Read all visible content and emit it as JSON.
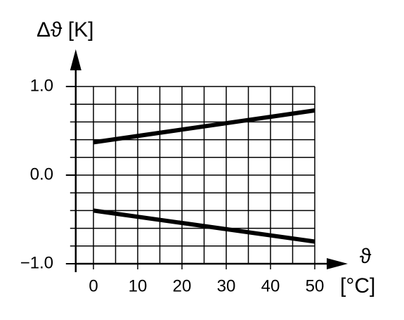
{
  "chart_data": {
    "type": "line",
    "y_label": "Δϑ [K]",
    "x_symbol": "ϑ",
    "x_unit": "[°C]",
    "x": [
      0,
      50
    ],
    "series": [
      {
        "color": "#000000",
        "values": [
          0.37,
          0.73
        ]
      },
      {
        "color": "#000000",
        "values": [
          -0.4,
          -0.75
        ]
      }
    ],
    "xlim": [
      -4,
      50
    ],
    "ylim": [
      -1,
      1
    ],
    "xticks": [
      0,
      10,
      20,
      30,
      40,
      50
    ],
    "yticks": [
      {
        "value": -1,
        "label": "−1.0"
      },
      {
        "value": 0,
        "label": "0.0"
      },
      {
        "value": 1,
        "label": "1.0"
      }
    ],
    "xgrid": [
      0,
      5,
      10,
      15,
      20,
      25,
      30,
      35,
      40,
      45,
      50
    ],
    "ygrid": [
      -0.8,
      -0.6,
      -0.4,
      -0.2,
      0,
      0.2,
      0.4,
      0.6,
      0.8,
      1
    ],
    "grid": true
  }
}
